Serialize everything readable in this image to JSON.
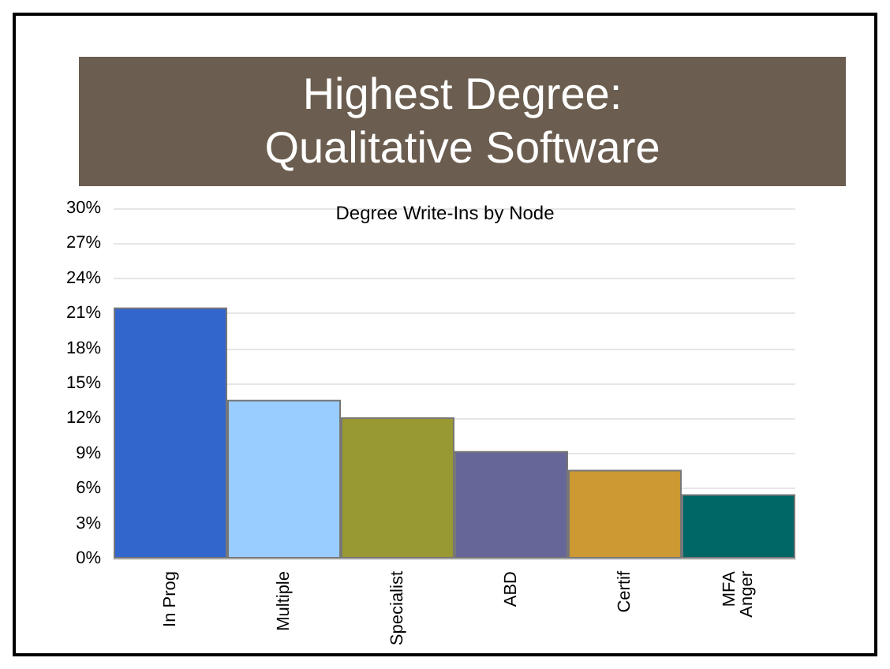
{
  "chart_data": {
    "type": "bar",
    "title": "Highest Degree:\nQualitative Software",
    "subtitle": "Degree Write-Ins by Node",
    "categories": [
      "In Prog",
      "Multiple",
      "Specialist",
      "ABD",
      "Certif",
      "MFA\nAnger"
    ],
    "values": [
      21.5,
      13.6,
      12.1,
      9.2,
      7.6,
      5.5
    ],
    "colors": [
      "#3366cc",
      "#99ccff",
      "#999933",
      "#666699",
      "#cc9933",
      "#006666"
    ],
    "ylim": [
      0,
      30
    ],
    "yticks": [
      {
        "value": 0,
        "label": "0%"
      },
      {
        "value": 3,
        "label": "3%"
      },
      {
        "value": 6,
        "label": "6%"
      },
      {
        "value": 9,
        "label": "9%"
      },
      {
        "value": 12,
        "label": "12%"
      },
      {
        "value": 15,
        "label": "15%"
      },
      {
        "value": 18,
        "label": "18%"
      },
      {
        "value": 21,
        "label": "21%"
      },
      {
        "value": 24,
        "label": "24%"
      },
      {
        "value": 27,
        "label": "27%"
      },
      {
        "value": 30,
        "label": "30%"
      }
    ],
    "grid": "y"
  }
}
